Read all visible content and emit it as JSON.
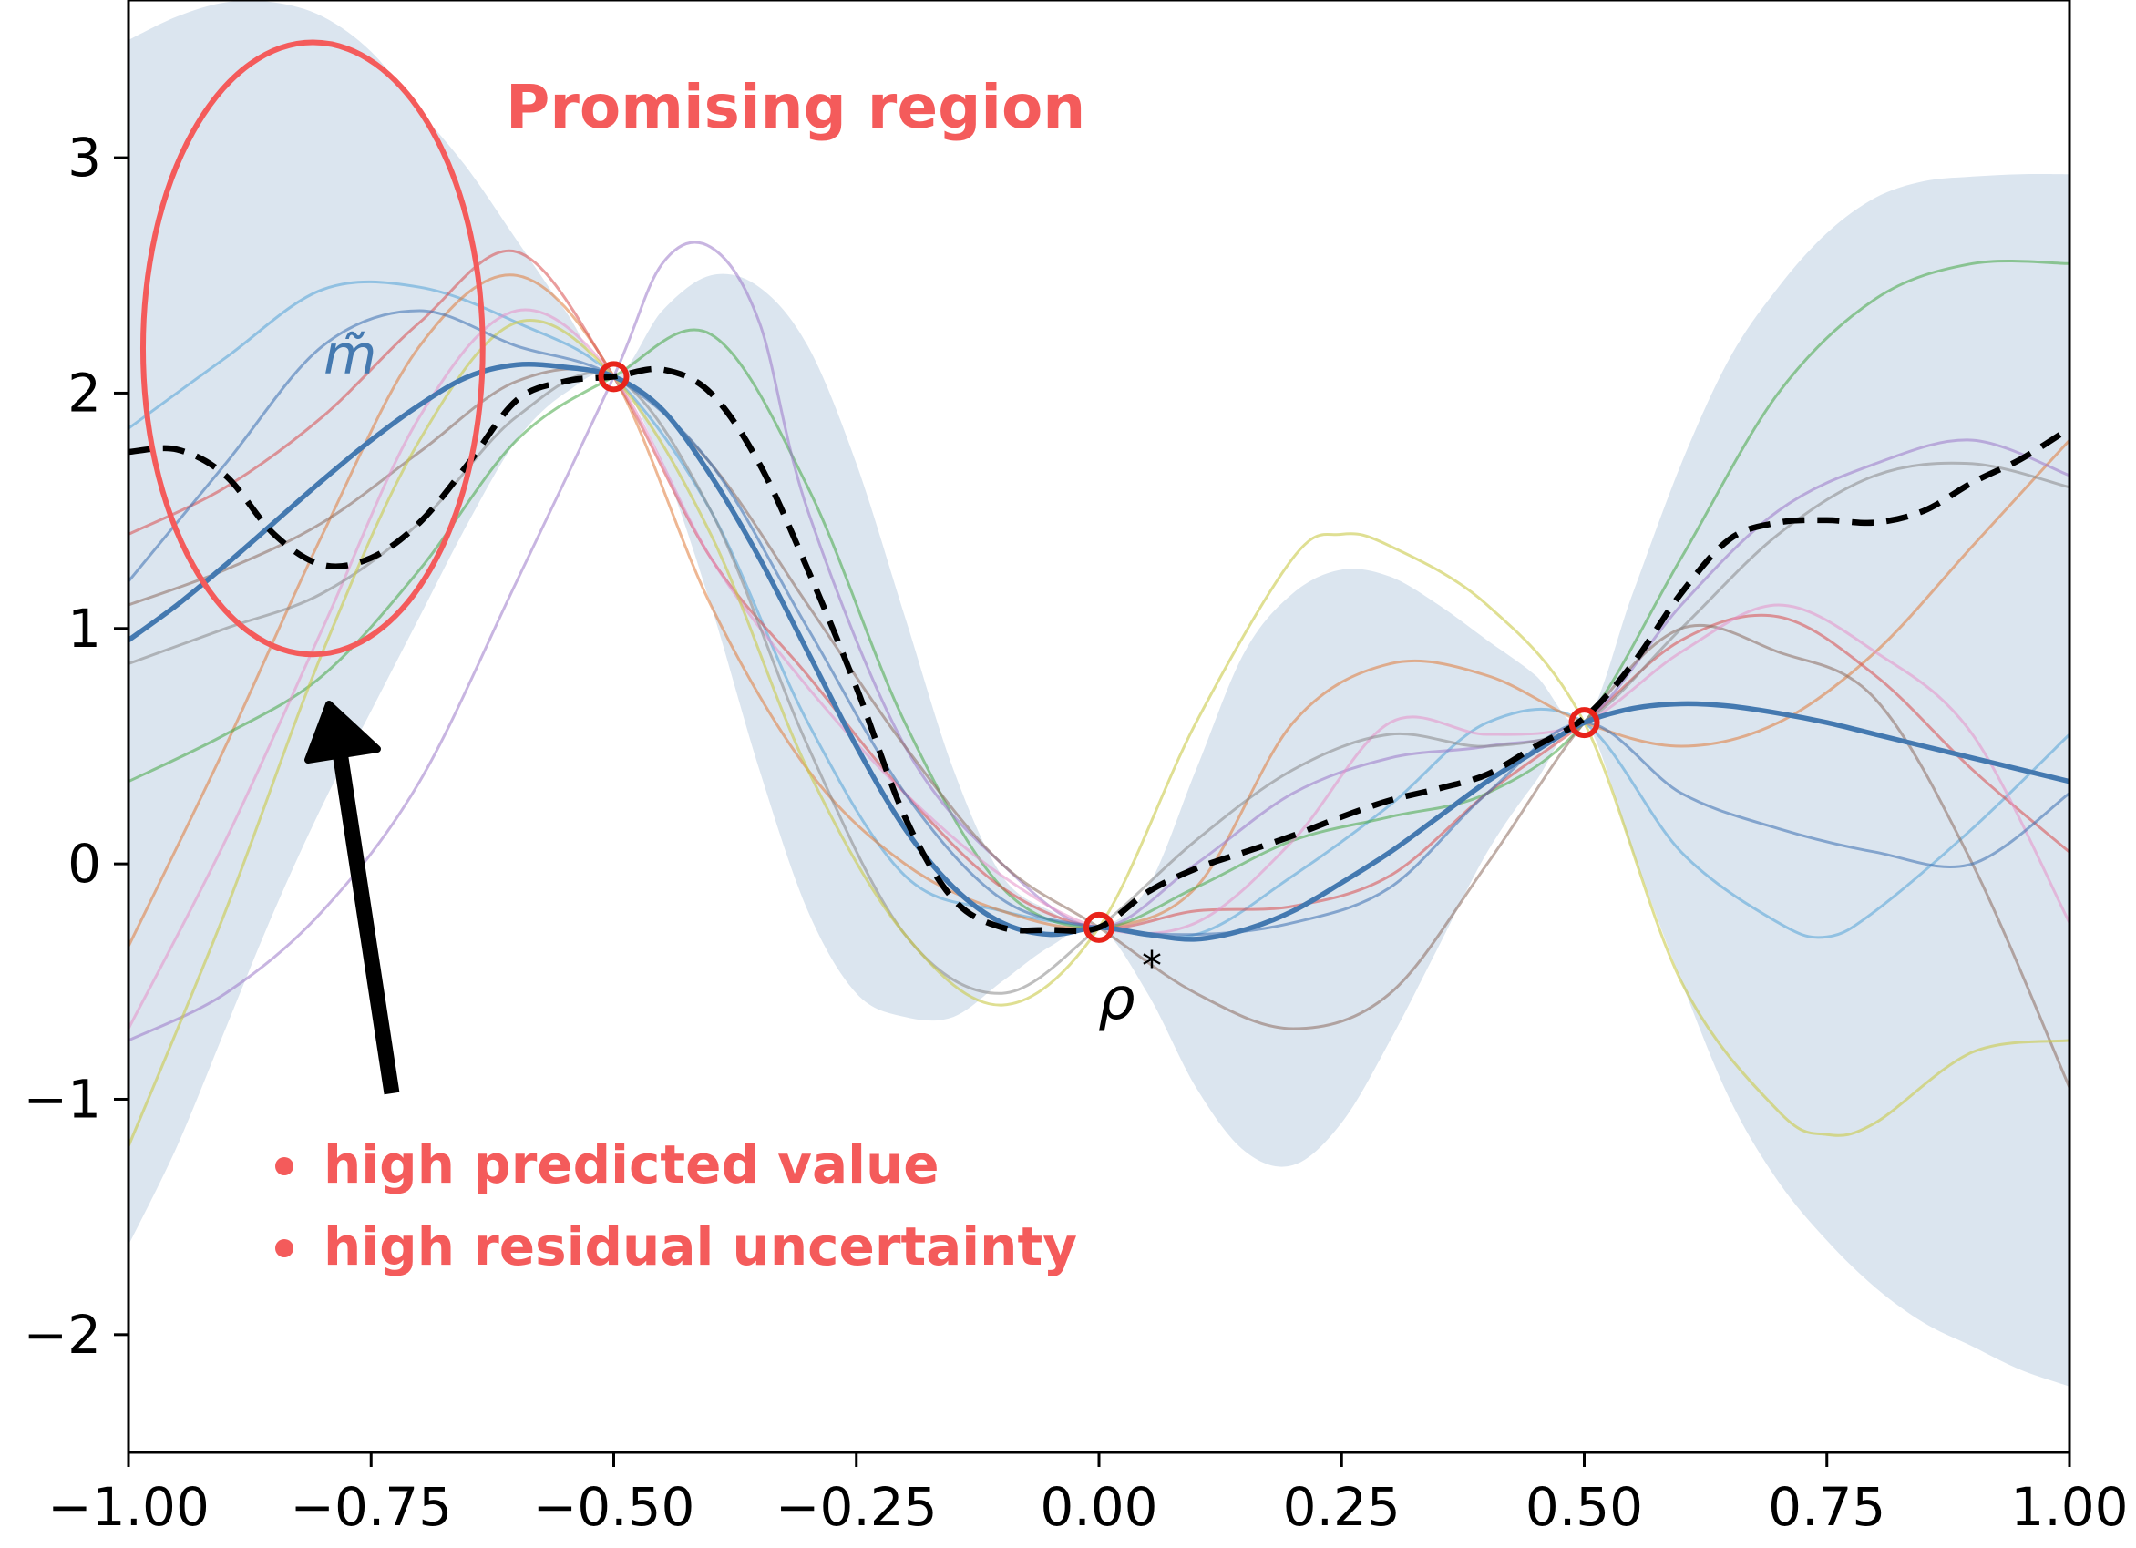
{
  "chart_data": {
    "type": "line",
    "title": "",
    "xlabel": "",
    "ylabel": "",
    "xlim": [
      -1.0,
      1.0
    ],
    "ylim": [
      -2.5,
      3.67
    ],
    "grid": false,
    "legend": "none",
    "x_ticks": [
      -1.0,
      -0.75,
      -0.5,
      -0.25,
      0.0,
      0.25,
      0.5,
      0.75,
      1.0
    ],
    "x_tick_labels": [
      "−1.00",
      "−0.75",
      "−0.50",
      "−0.25",
      "0.00",
      "0.25",
      "0.50",
      "0.75",
      "1.00"
    ],
    "y_ticks": [
      -2,
      -1,
      0,
      1,
      2,
      3
    ],
    "y_tick_labels": [
      "−2",
      "−1",
      "0",
      "1",
      "2",
      "3"
    ],
    "colors": {
      "band": "#dbe5ef",
      "mean": "#4479b0",
      "truth": "#000000",
      "annotation": "#f45b5b",
      "observation": "#e8231a"
    },
    "uncertainty_band": {
      "x": [
        -1.0,
        -0.95,
        -0.9,
        -0.85,
        -0.8,
        -0.75,
        -0.7,
        -0.65,
        -0.6,
        -0.55,
        -0.5,
        -0.45,
        -0.4,
        -0.35,
        -0.3,
        -0.25,
        -0.2,
        -0.15,
        -0.1,
        -0.05,
        0.0,
        0.05,
        0.1,
        0.15,
        0.2,
        0.25,
        0.3,
        0.35,
        0.4,
        0.45,
        0.5,
        0.55,
        0.6,
        0.65,
        0.7,
        0.75,
        0.8,
        0.85,
        0.9,
        0.95,
        1.0
      ],
      "upper": [
        3.5,
        3.6,
        3.66,
        3.66,
        3.6,
        3.45,
        3.2,
        2.95,
        2.65,
        2.35,
        2.07,
        2.35,
        2.5,
        2.45,
        2.2,
        1.7,
        1.05,
        0.4,
        -0.05,
        -0.2,
        -0.27,
        -0.1,
        0.4,
        0.9,
        1.15,
        1.25,
        1.22,
        1.1,
        0.95,
        0.8,
        0.6,
        1.15,
        1.7,
        2.15,
        2.45,
        2.68,
        2.83,
        2.9,
        2.92,
        2.93,
        2.93
      ],
      "lower": [
        -1.62,
        -1.2,
        -0.7,
        -0.2,
        0.25,
        0.65,
        1.05,
        1.45,
        1.8,
        2.0,
        2.07,
        1.7,
        1.1,
        0.4,
        -0.2,
        -0.55,
        -0.65,
        -0.65,
        -0.5,
        -0.35,
        -0.27,
        -0.55,
        -0.95,
        -1.22,
        -1.28,
        -1.1,
        -0.75,
        -0.35,
        0.05,
        0.35,
        0.6,
        0.05,
        -0.5,
        -1.0,
        -1.35,
        -1.6,
        -1.8,
        -1.95,
        -2.05,
        -2.15,
        -2.22
      ]
    },
    "series": [
      {
        "role": "mean",
        "color": "#4479b0",
        "width": 5.5,
        "dash": "",
        "x": [
          -1.0,
          -0.95,
          -0.9,
          -0.85,
          -0.8,
          -0.75,
          -0.7,
          -0.65,
          -0.6,
          -0.55,
          -0.5,
          -0.45,
          -0.4,
          -0.35,
          -0.3,
          -0.25,
          -0.2,
          -0.15,
          -0.1,
          -0.05,
          0.0,
          0.05,
          0.1,
          0.15,
          0.2,
          0.25,
          0.3,
          0.35,
          0.4,
          0.45,
          0.5,
          0.55,
          0.6,
          0.65,
          0.7,
          0.75,
          0.8,
          0.85,
          0.9,
          0.95,
          1.0
        ],
        "y": [
          0.95,
          1.1,
          1.27,
          1.45,
          1.63,
          1.8,
          1.95,
          2.07,
          2.12,
          2.11,
          2.07,
          1.93,
          1.65,
          1.3,
          0.9,
          0.5,
          0.15,
          -0.1,
          -0.25,
          -0.3,
          -0.27,
          -0.3,
          -0.32,
          -0.28,
          -0.2,
          -0.08,
          0.05,
          0.2,
          0.35,
          0.48,
          0.6,
          0.66,
          0.68,
          0.67,
          0.64,
          0.6,
          0.55,
          0.5,
          0.45,
          0.4,
          0.35
        ]
      },
      {
        "role": "truth",
        "color": "#000000",
        "width": 6.5,
        "dash": "24,14",
        "x": [
          -1.0,
          -0.95,
          -0.9,
          -0.85,
          -0.8,
          -0.75,
          -0.7,
          -0.65,
          -0.6,
          -0.55,
          -0.5,
          -0.45,
          -0.4,
          -0.35,
          -0.3,
          -0.25,
          -0.2,
          -0.15,
          -0.1,
          -0.05,
          0.0,
          0.05,
          0.1,
          0.15,
          0.2,
          0.25,
          0.3,
          0.35,
          0.4,
          0.45,
          0.5,
          0.55,
          0.6,
          0.65,
          0.7,
          0.75,
          0.8,
          0.85,
          0.9,
          0.95,
          1.0
        ],
        "y": [
          1.75,
          1.76,
          1.65,
          1.4,
          1.27,
          1.3,
          1.45,
          1.7,
          1.97,
          2.05,
          2.07,
          2.1,
          2.0,
          1.7,
          1.25,
          0.75,
          0.2,
          -0.15,
          -0.27,
          -0.28,
          -0.27,
          -0.12,
          -0.02,
          0.05,
          0.12,
          0.2,
          0.27,
          0.32,
          0.38,
          0.5,
          0.62,
          0.85,
          1.15,
          1.38,
          1.45,
          1.46,
          1.45,
          1.5,
          1.62,
          1.72,
          1.85
        ]
      },
      {
        "role": "sample",
        "color": "#5fa8d8",
        "width": 3,
        "dash": "",
        "opacity": 0.6,
        "x": [
          -1.0,
          -0.9,
          -0.8,
          -0.7,
          -0.6,
          -0.5,
          -0.4,
          -0.3,
          -0.2,
          -0.1,
          0.0,
          0.1,
          0.2,
          0.3,
          0.4,
          0.5,
          0.6,
          0.7,
          0.75,
          0.8,
          0.9,
          1.0
        ],
        "y": [
          1.85,
          2.15,
          2.44,
          2.45,
          2.3,
          2.07,
          1.5,
          0.6,
          -0.05,
          -0.2,
          -0.27,
          -0.3,
          -0.05,
          0.25,
          0.6,
          0.6,
          0.05,
          -0.25,
          -0.31,
          -0.2,
          0.15,
          0.55
        ]
      },
      {
        "role": "sample",
        "color": "#e07b3a",
        "width": 3,
        "dash": "",
        "opacity": 0.55,
        "x": [
          -1.0,
          -0.9,
          -0.8,
          -0.7,
          -0.6,
          -0.5,
          -0.4,
          -0.3,
          -0.2,
          -0.1,
          0.0,
          0.1,
          0.2,
          0.3,
          0.4,
          0.5,
          0.6,
          0.7,
          0.8,
          0.9,
          1.0
        ],
        "y": [
          -0.35,
          0.5,
          1.4,
          2.2,
          2.5,
          2.07,
          1.1,
          0.4,
          0.0,
          -0.2,
          -0.27,
          -0.1,
          0.6,
          0.85,
          0.8,
          0.6,
          0.5,
          0.6,
          0.9,
          1.35,
          1.8
        ]
      },
      {
        "role": "sample",
        "color": "#45a845",
        "width": 3,
        "dash": "",
        "opacity": 0.55,
        "x": [
          -1.0,
          -0.9,
          -0.8,
          -0.7,
          -0.6,
          -0.5,
          -0.4,
          -0.3,
          -0.2,
          -0.1,
          0.0,
          0.1,
          0.2,
          0.3,
          0.4,
          0.5,
          0.6,
          0.7,
          0.8,
          0.9,
          1.0
        ],
        "y": [
          0.35,
          0.55,
          0.8,
          1.25,
          1.8,
          2.07,
          2.25,
          1.6,
          0.6,
          -0.1,
          -0.27,
          -0.1,
          0.1,
          0.2,
          0.3,
          0.6,
          1.3,
          2.0,
          2.4,
          2.55,
          2.55
        ]
      },
      {
        "role": "sample",
        "color": "#d94c4c",
        "width": 3,
        "dash": "",
        "opacity": 0.55,
        "x": [
          -1.0,
          -0.9,
          -0.8,
          -0.7,
          -0.6,
          -0.5,
          -0.4,
          -0.3,
          -0.2,
          -0.1,
          0.0,
          0.1,
          0.2,
          0.3,
          0.4,
          0.5,
          0.6,
          0.7,
          0.8,
          0.9,
          1.0
        ],
        "y": [
          1.4,
          1.6,
          1.9,
          2.3,
          2.6,
          2.07,
          1.3,
          0.8,
          0.3,
          -0.1,
          -0.27,
          -0.2,
          -0.18,
          -0.05,
          0.3,
          0.6,
          0.95,
          1.05,
          0.8,
          0.4,
          0.05
        ]
      },
      {
        "role": "sample",
        "color": "#9a79c8",
        "width": 3,
        "dash": "",
        "opacity": 0.55,
        "x": [
          -1.0,
          -0.9,
          -0.8,
          -0.7,
          -0.6,
          -0.5,
          -0.45,
          -0.4,
          -0.35,
          -0.3,
          -0.2,
          -0.1,
          0.0,
          0.1,
          0.2,
          0.3,
          0.4,
          0.5,
          0.6,
          0.7,
          0.8,
          0.9,
          1.0
        ],
        "y": [
          -0.75,
          -0.55,
          -0.2,
          0.35,
          1.2,
          2.07,
          2.55,
          2.62,
          2.3,
          1.5,
          0.5,
          0.0,
          -0.27,
          0.0,
          0.3,
          0.45,
          0.5,
          0.6,
          1.1,
          1.5,
          1.7,
          1.8,
          1.65
        ]
      },
      {
        "role": "sample",
        "color": "#8c6b5e",
        "width": 3,
        "dash": "",
        "opacity": 0.55,
        "x": [
          -1.0,
          -0.9,
          -0.8,
          -0.7,
          -0.6,
          -0.5,
          -0.4,
          -0.3,
          -0.2,
          -0.1,
          0.0,
          0.1,
          0.2,
          0.3,
          0.4,
          0.5,
          0.6,
          0.7,
          0.8,
          0.9,
          1.0
        ],
        "y": [
          1.1,
          1.25,
          1.45,
          1.75,
          2.05,
          2.07,
          1.7,
          1.1,
          0.5,
          0.0,
          -0.27,
          -0.55,
          -0.7,
          -0.55,
          0.0,
          0.6,
          1.0,
          0.9,
          0.7,
          0.0,
          -0.95
        ]
      },
      {
        "role": "sample",
        "color": "#e592c8",
        "width": 3,
        "dash": "",
        "opacity": 0.55,
        "x": [
          -1.0,
          -0.9,
          -0.8,
          -0.7,
          -0.6,
          -0.5,
          -0.4,
          -0.3,
          -0.2,
          -0.1,
          0.0,
          0.1,
          0.2,
          0.3,
          0.4,
          0.5,
          0.6,
          0.7,
          0.8,
          0.9,
          1.0
        ],
        "y": [
          -0.7,
          0.1,
          1.0,
          1.9,
          2.35,
          2.07,
          1.3,
          0.75,
          0.3,
          -0.05,
          -0.27,
          -0.25,
          0.1,
          0.6,
          0.55,
          0.6,
          0.9,
          1.1,
          0.9,
          0.55,
          -0.25
        ]
      },
      {
        "role": "sample",
        "color": "#888888",
        "width": 3,
        "dash": "",
        "opacity": 0.55,
        "x": [
          -1.0,
          -0.9,
          -0.8,
          -0.7,
          -0.6,
          -0.5,
          -0.4,
          -0.3,
          -0.2,
          -0.1,
          0.0,
          0.1,
          0.2,
          0.3,
          0.4,
          0.5,
          0.6,
          0.7,
          0.8,
          0.9,
          1.0
        ],
        "y": [
          0.85,
          1.0,
          1.15,
          1.45,
          1.9,
          2.07,
          1.5,
          0.5,
          -0.3,
          -0.55,
          -0.27,
          0.1,
          0.4,
          0.55,
          0.5,
          0.6,
          1.0,
          1.4,
          1.65,
          1.7,
          1.6
        ]
      },
      {
        "role": "sample",
        "color": "#c9c94a",
        "width": 3,
        "dash": "",
        "opacity": 0.6,
        "x": [
          -1.0,
          -0.9,
          -0.8,
          -0.7,
          -0.6,
          -0.5,
          -0.4,
          -0.3,
          -0.2,
          -0.1,
          0.0,
          0.1,
          0.2,
          0.25,
          0.3,
          0.4,
          0.5,
          0.6,
          0.7,
          0.75,
          0.8,
          0.9,
          1.0
        ],
        "y": [
          -1.2,
          -0.2,
          0.9,
          1.8,
          2.3,
          2.07,
          1.4,
          0.4,
          -0.3,
          -0.6,
          -0.27,
          0.6,
          1.3,
          1.4,
          1.35,
          1.1,
          0.6,
          -0.5,
          -1.05,
          -1.15,
          -1.1,
          -0.8,
          -0.75
        ]
      },
      {
        "role": "sample",
        "color": "#3a6fb0",
        "width": 3,
        "dash": "",
        "opacity": 0.55,
        "x": [
          -1.0,
          -0.9,
          -0.8,
          -0.7,
          -0.6,
          -0.5,
          -0.4,
          -0.3,
          -0.2,
          -0.1,
          0.0,
          0.1,
          0.2,
          0.3,
          0.4,
          0.5,
          0.6,
          0.7,
          0.8,
          0.9,
          1.0
        ],
        "y": [
          1.2,
          1.7,
          2.2,
          2.35,
          2.2,
          2.07,
          1.7,
          1.0,
          0.3,
          -0.15,
          -0.27,
          -0.3,
          -0.25,
          -0.1,
          0.3,
          0.6,
          0.3,
          0.15,
          0.05,
          0.0,
          0.3
        ]
      }
    ],
    "observations": {
      "x": [
        -0.5,
        0.0,
        0.5
      ],
      "y": [
        2.07,
        -0.27,
        0.6
      ]
    },
    "annotations": {
      "ellipse_label": "Promising region",
      "bullet_1": "high predicted value",
      "bullet_2": "high residual uncertainty",
      "mean_label": "m̃",
      "optimum_label": "ρ",
      "optimum_superscript": "*",
      "promising_region": {
        "cx": -0.81,
        "cy": 2.19,
        "rx": 0.175,
        "ry": 1.3
      }
    }
  }
}
